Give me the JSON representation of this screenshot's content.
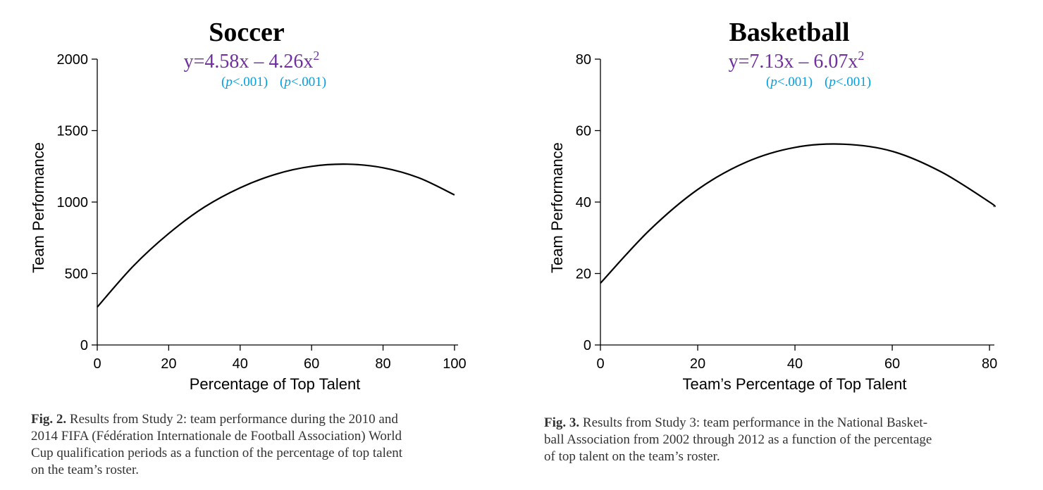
{
  "colors": {
    "equation": "#7030A0",
    "pvalue": "#00A0E0",
    "axis": "#000000",
    "curve": "#000000"
  },
  "chart_data": [
    {
      "type": "line",
      "title": "Soccer",
      "equation": {
        "prefix": "y=4.58x – 4.26x",
        "superscript": "2"
      },
      "p_values": [
        "(p<.001)",
        "(p<.001)"
      ],
      "xlabel": "Percentage of Top Talent",
      "ylabel": "Team Performance",
      "xlim": [
        0,
        101
      ],
      "ylim": [
        0,
        2000
      ],
      "xticks": [
        0,
        20,
        40,
        60,
        80,
        100
      ],
      "yticks": [
        0,
        500,
        1000,
        1500,
        2000
      ],
      "series": [
        {
          "x": [
            0,
            10,
            20,
            30,
            40,
            50,
            60,
            70,
            80,
            90,
            100
          ],
          "y": [
            265,
            550,
            780,
            965,
            1100,
            1195,
            1250,
            1265,
            1240,
            1170,
            1050
          ]
        }
      ],
      "caption": {
        "label": "Fig. 2.",
        "lines": [
          "Results from Study 2: team performance during the 2010 and",
          "2014 FIFA (Fédération Internationale de Football Association) World",
          "Cup qualification periods as a function of the percentage of top talent",
          "on the team’s roster."
        ]
      }
    },
    {
      "type": "line",
      "title": "Basketball",
      "equation": {
        "prefix": "y=7.13x – 6.07x",
        "superscript": "2"
      },
      "p_values": [
        "(p<.001)",
        "(p<.001)"
      ],
      "xlabel": "Team’s Percentage of Top Talent",
      "ylabel": "Team Performance",
      "xlim": [
        0,
        81
      ],
      "ylim": [
        0,
        80
      ],
      "xticks": [
        0,
        20,
        40,
        60,
        80
      ],
      "yticks": [
        0,
        20,
        40,
        60,
        80
      ],
      "series": [
        {
          "x": [
            0,
            10,
            20,
            30,
            40,
            50,
            60,
            70,
            80,
            81
          ],
          "y": [
            17.3,
            32,
            43.5,
            51.2,
            55.3,
            56.2,
            54.2,
            48.5,
            40,
            38.7
          ]
        }
      ],
      "caption": {
        "label": "Fig. 3.",
        "lines": [
          "Results from Study 3: team performance in the National Basket-",
          "ball Association from 2002 through 2012 as a function of the percentage",
          "of top talent on the team’s roster."
        ]
      }
    }
  ]
}
